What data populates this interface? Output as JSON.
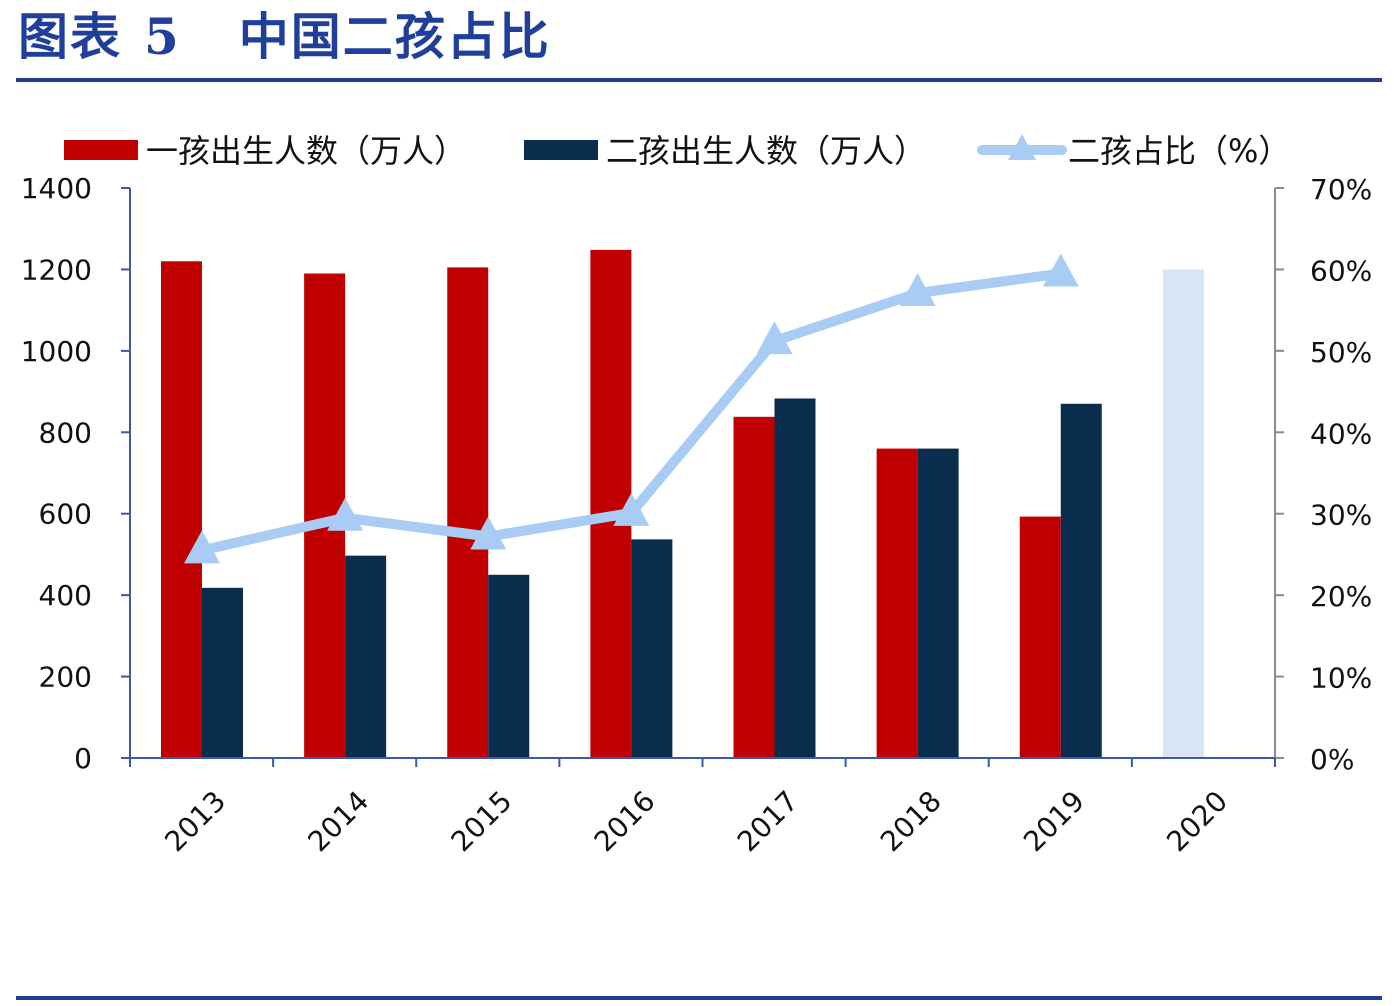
{
  "header": {
    "figure_label": "图表",
    "figure_number": "5",
    "title": "中国二孩占比"
  },
  "chart_data": {
    "type": "bar",
    "categories": [
      "2013",
      "2014",
      "2015",
      "2016",
      "2017",
      "2018",
      "2019",
      "2020"
    ],
    "series": [
      {
        "name": "一孩出生人数（万人）",
        "type": "bar",
        "axis": "left",
        "color": "#c00000",
        "values": [
          1220,
          1190,
          1205,
          1248,
          838,
          760,
          593,
          1200
        ]
      },
      {
        "name": "二孩出生人数（万人）",
        "type": "bar",
        "axis": "left",
        "color": "#0a2d4e",
        "values": [
          418,
          497,
          450,
          537,
          883,
          760,
          870,
          null
        ]
      },
      {
        "name": "二孩占比（%）",
        "type": "line",
        "axis": "right",
        "color": "#a9ccf5",
        "values": [
          25.5,
          29.5,
          27.2,
          30.1,
          51.2,
          57.1,
          59.5,
          null
        ]
      }
    ],
    "left_axis": {
      "min": 0,
      "max": 1400,
      "ticks": [
        0,
        200,
        400,
        600,
        800,
        1000,
        1200,
        1400
      ],
      "tick_labels": [
        "0",
        "200",
        "400",
        "600",
        "800",
        "1000",
        "1200",
        "1400"
      ]
    },
    "right_axis": {
      "min": 0,
      "max": 70,
      "ticks": [
        0,
        10,
        20,
        30,
        40,
        50,
        60,
        70
      ],
      "tick_labels": [
        "0%",
        "10%",
        "20%",
        "30%",
        "40%",
        "50%",
        "60%",
        "70%"
      ]
    },
    "highlight_color": "#d7e5f6",
    "grid": false,
    "legend_position": "top"
  }
}
